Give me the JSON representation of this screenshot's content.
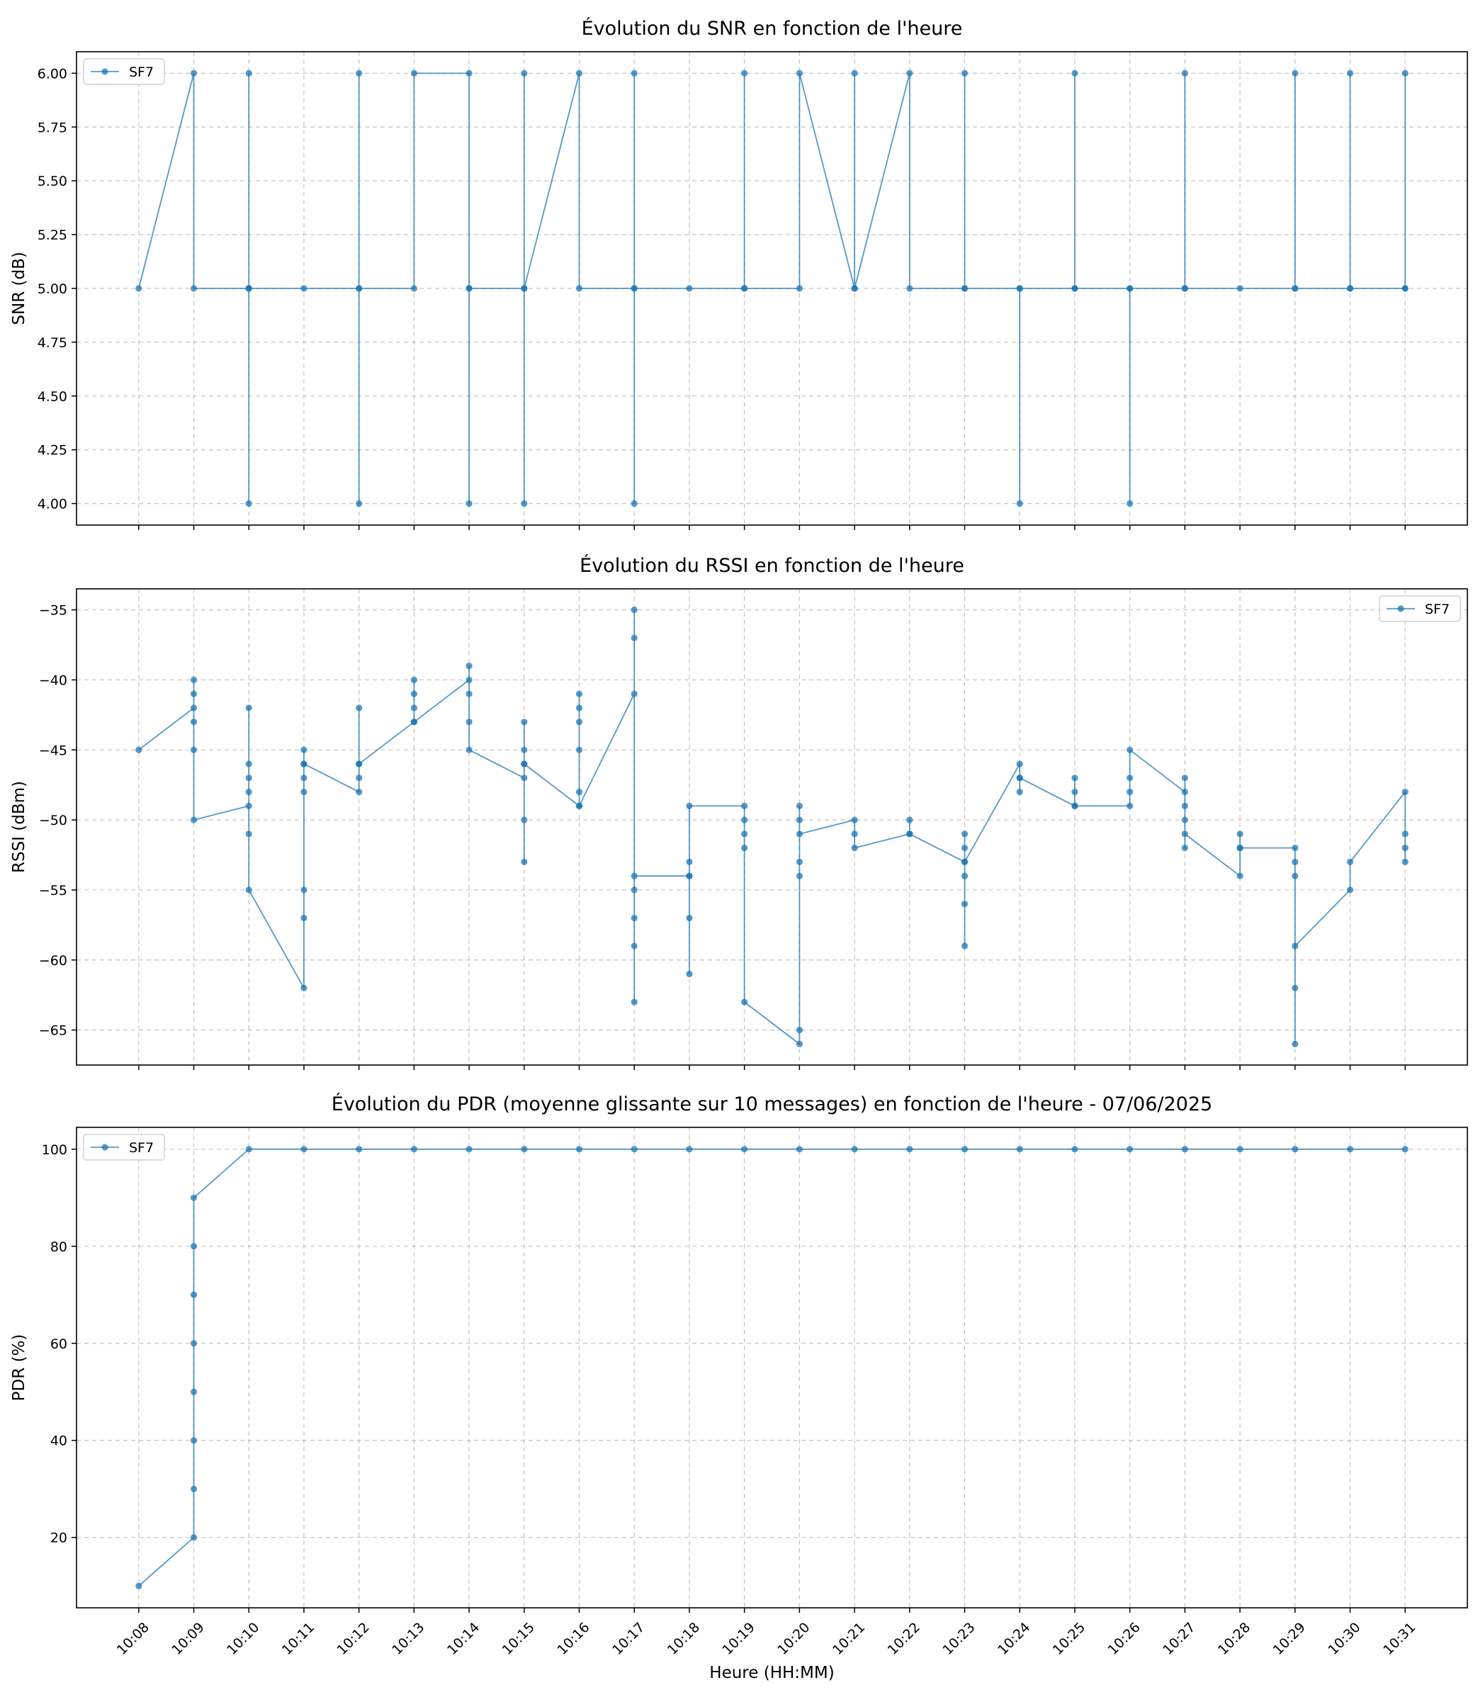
{
  "chart_data": [
    {
      "type": "line",
      "title": "Évolution du SNR en fonction de l'heure",
      "ylabel": "SNR (dB)",
      "xlabel": "",
      "ylim": [
        3.9,
        6.1
      ],
      "yticks": [
        4.0,
        4.25,
        4.5,
        4.75,
        5.0,
        5.25,
        5.5,
        5.75,
        6.0
      ],
      "yticklabels": [
        "4.00",
        "4.25",
        "4.50",
        "4.75",
        "5.00",
        "5.25",
        "5.50",
        "5.75",
        "6.00"
      ],
      "legend": "upper left",
      "series": [
        {
          "name": "SF7",
          "color": "#1f77b4",
          "points": [
            [
              0,
              5
            ],
            [
              1,
              6
            ],
            [
              1,
              5
            ],
            [
              2,
              5
            ],
            [
              2,
              6
            ],
            [
              2,
              5
            ],
            [
              2,
              4
            ],
            [
              2,
              5
            ],
            [
              3,
              5
            ],
            [
              4,
              5
            ],
            [
              4,
              6
            ],
            [
              4,
              4
            ],
            [
              4,
              5
            ],
            [
              5,
              5
            ],
            [
              5,
              6
            ],
            [
              6,
              6
            ],
            [
              6,
              5
            ],
            [
              6,
              4
            ],
            [
              6,
              5
            ],
            [
              7,
              5
            ],
            [
              7,
              6
            ],
            [
              7,
              4
            ],
            [
              7,
              5
            ],
            [
              8,
              6
            ],
            [
              8,
              5
            ],
            [
              9,
              5
            ],
            [
              9,
              6
            ],
            [
              9,
              4
            ],
            [
              9,
              5
            ],
            [
              10,
              5
            ],
            [
              11,
              5
            ],
            [
              11,
              6
            ],
            [
              11,
              5
            ],
            [
              12,
              5
            ],
            [
              12,
              6
            ],
            [
              13,
              5
            ],
            [
              13,
              6
            ],
            [
              13,
              5
            ],
            [
              14,
              6
            ],
            [
              14,
              5
            ],
            [
              15,
              5
            ],
            [
              15,
              6
            ],
            [
              15,
              5
            ],
            [
              16,
              5
            ],
            [
              16,
              4
            ],
            [
              16,
              5
            ],
            [
              17,
              5
            ],
            [
              17,
              6
            ],
            [
              17,
              5
            ],
            [
              18,
              5
            ],
            [
              18,
              4
            ],
            [
              18,
              5
            ],
            [
              19,
              5
            ],
            [
              19,
              6
            ],
            [
              19,
              5
            ],
            [
              20,
              5
            ],
            [
              21,
              5
            ],
            [
              21,
              6
            ],
            [
              21,
              5
            ],
            [
              22,
              5
            ],
            [
              22,
              6
            ],
            [
              22,
              5
            ],
            [
              23,
              5
            ],
            [
              23,
              6
            ],
            [
              23,
              5
            ]
          ]
        }
      ]
    },
    {
      "type": "line",
      "title": "Évolution du RSSI en fonction de l'heure",
      "ylabel": "RSSI (dBm)",
      "xlabel": "",
      "ylim": [
        -67.5,
        -33.5
      ],
      "yticks": [
        -65,
        -60,
        -55,
        -50,
        -45,
        -40,
        -35
      ],
      "yticklabels": [
        "−65",
        "−60",
        "−55",
        "−50",
        "−45",
        "−40",
        "−35"
      ],
      "legend": "upper right",
      "series": [
        {
          "name": "SF7",
          "color": "#1f77b4",
          "points": [
            [
              0,
              -45
            ],
            [
              1,
              -42
            ],
            [
              1,
              -40
            ],
            [
              1,
              -41
            ],
            [
              1,
              -43
            ],
            [
              1,
              -45
            ],
            [
              1,
              -50
            ],
            [
              2,
              -49
            ],
            [
              2,
              -42
            ],
            [
              2,
              -46
            ],
            [
              2,
              -47
            ],
            [
              2,
              -48
            ],
            [
              2,
              -51
            ],
            [
              2,
              -55
            ],
            [
              3,
              -62
            ],
            [
              3,
              -57
            ],
            [
              3,
              -55
            ],
            [
              3,
              -48
            ],
            [
              3,
              -47
            ],
            [
              3,
              -46
            ],
            [
              3,
              -45
            ],
            [
              3,
              -46
            ],
            [
              4,
              -48
            ],
            [
              4,
              -47
            ],
            [
              4,
              -46
            ],
            [
              4,
              -42
            ],
            [
              4,
              -46
            ],
            [
              5,
              -43
            ],
            [
              5,
              -42
            ],
            [
              5,
              -41
            ],
            [
              5,
              -40
            ],
            [
              5,
              -43
            ],
            [
              6,
              -40
            ],
            [
              6,
              -39
            ],
            [
              6,
              -41
            ],
            [
              6,
              -43
            ],
            [
              6,
              -45
            ],
            [
              7,
              -47
            ],
            [
              7,
              -53
            ],
            [
              7,
              -50
            ],
            [
              7,
              -46
            ],
            [
              7,
              -45
            ],
            [
              7,
              -43
            ],
            [
              7,
              -46
            ],
            [
              8,
              -49
            ],
            [
              8,
              -48
            ],
            [
              8,
              -45
            ],
            [
              8,
              -43
            ],
            [
              8,
              -42
            ],
            [
              8,
              -41
            ],
            [
              8,
              -49
            ],
            [
              9,
              -41
            ],
            [
              9,
              -37
            ],
            [
              9,
              -35
            ],
            [
              9,
              -63
            ],
            [
              9,
              -59
            ],
            [
              9,
              -57
            ],
            [
              9,
              -55
            ],
            [
              9,
              -54
            ],
            [
              10,
              -54
            ],
            [
              10,
              -61
            ],
            [
              10,
              -57
            ],
            [
              10,
              -53
            ],
            [
              10,
              -54
            ],
            [
              10,
              -49
            ],
            [
              11,
              -49
            ],
            [
              11,
              -50
            ],
            [
              11,
              -51
            ],
            [
              11,
              -52
            ],
            [
              11,
              -63
            ],
            [
              12,
              -66
            ],
            [
              12,
              -65
            ],
            [
              12,
              -54
            ],
            [
              12,
              -53
            ],
            [
              12,
              -50
            ],
            [
              12,
              -49
            ],
            [
              12,
              -51
            ],
            [
              13,
              -50
            ],
            [
              13,
              -51
            ],
            [
              13,
              -52
            ],
            [
              14,
              -51
            ],
            [
              14,
              -50
            ],
            [
              14,
              -51
            ],
            [
              15,
              -53
            ],
            [
              15,
              -59
            ],
            [
              15,
              -56
            ],
            [
              15,
              -54
            ],
            [
              15,
              -52
            ],
            [
              15,
              -51
            ],
            [
              15,
              -53
            ],
            [
              16,
              -46
            ],
            [
              16,
              -47
            ],
            [
              16,
              -48
            ],
            [
              16,
              -47
            ],
            [
              17,
              -49
            ],
            [
              17,
              -48
            ],
            [
              17,
              -47
            ],
            [
              17,
              -49
            ],
            [
              18,
              -49
            ],
            [
              18,
              -48
            ],
            [
              18,
              -47
            ],
            [
              18,
              -45
            ],
            [
              19,
              -48
            ],
            [
              19,
              -47
            ],
            [
              19,
              -49
            ],
            [
              19,
              -50
            ],
            [
              19,
              -52
            ],
            [
              19,
              -51
            ],
            [
              20,
              -54
            ],
            [
              20,
              -52
            ],
            [
              20,
              -51
            ],
            [
              20,
              -52
            ],
            [
              21,
              -52
            ],
            [
              21,
              -53
            ],
            [
              21,
              -54
            ],
            [
              21,
              -62
            ],
            [
              21,
              -66
            ],
            [
              21,
              -59
            ],
            [
              22,
              -55
            ],
            [
              22,
              -53
            ],
            [
              23,
              -48
            ],
            [
              23,
              -51
            ],
            [
              23,
              -52
            ],
            [
              23,
              -53
            ]
          ]
        }
      ]
    },
    {
      "type": "line",
      "title": "Évolution du PDR (moyenne glissante sur 10 messages) en fonction de l'heure - 07/06/2025",
      "ylabel": "PDR (%)",
      "xlabel": "Heure (HH:MM)",
      "ylim": [
        5.5,
        104.5
      ],
      "yticks": [
        20,
        40,
        60,
        80,
        100
      ],
      "yticklabels": [
        "20",
        "40",
        "60",
        "80",
        "100"
      ],
      "xticklabels": [
        "10:08",
        "10:09",
        "10:10",
        "10:11",
        "10:12",
        "10:13",
        "10:14",
        "10:15",
        "10:16",
        "10:17",
        "10:18",
        "10:19",
        "10:20",
        "10:21",
        "10:22",
        "10:23",
        "10:24",
        "10:25",
        "10:26",
        "10:27",
        "10:28",
        "10:29",
        "10:30",
        "10:31"
      ],
      "legend": "upper left",
      "series": [
        {
          "name": "SF7",
          "color": "#1f77b4",
          "points": [
            [
              0,
              10
            ],
            [
              1,
              20
            ],
            [
              1,
              30
            ],
            [
              1,
              40
            ],
            [
              1,
              50
            ],
            [
              1,
              60
            ],
            [
              1,
              70
            ],
            [
              1,
              80
            ],
            [
              1,
              90
            ],
            [
              2,
              100
            ],
            [
              3,
              100
            ],
            [
              4,
              100
            ],
            [
              5,
              100
            ],
            [
              6,
              100
            ],
            [
              7,
              100
            ],
            [
              8,
              100
            ],
            [
              9,
              100
            ],
            [
              10,
              100
            ],
            [
              11,
              100
            ],
            [
              12,
              100
            ],
            [
              13,
              100
            ],
            [
              14,
              100
            ],
            [
              15,
              100
            ],
            [
              16,
              100
            ],
            [
              17,
              100
            ],
            [
              18,
              100
            ],
            [
              19,
              100
            ],
            [
              20,
              100
            ],
            [
              21,
              100
            ],
            [
              22,
              100
            ],
            [
              23,
              100
            ]
          ]
        }
      ]
    }
  ]
}
